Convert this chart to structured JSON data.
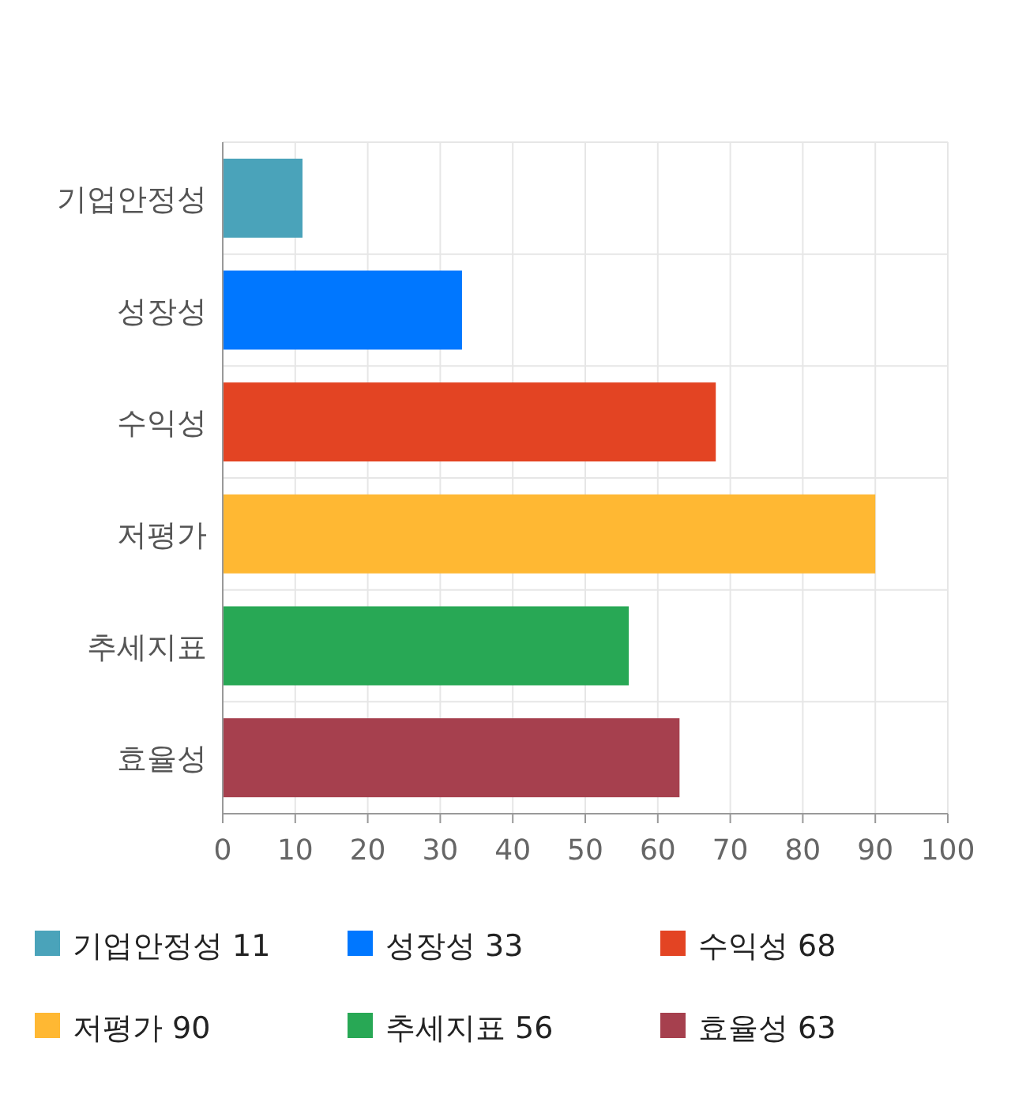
{
  "chart_data": {
    "type": "bar",
    "orientation": "horizontal",
    "categories": [
      "기업안정성",
      "성장성",
      "수익성",
      "저평가",
      "추세지표",
      "효율성"
    ],
    "values": [
      11,
      33,
      68,
      90,
      56,
      63
    ],
    "colors": [
      "#4aa3ba",
      "#0077ff",
      "#e34423",
      "#ffb833",
      "#28a855",
      "#a6404e"
    ],
    "annotations": [
      "기업안정성 11",
      "성장성 33",
      "수익성 68",
      "저평가 90",
      "추세지표 56",
      "효율성 63"
    ],
    "xlim": [
      0,
      100
    ],
    "xticks": [
      0,
      10,
      20,
      30,
      40,
      50,
      60,
      70,
      80,
      90,
      100
    ],
    "grid": true
  }
}
